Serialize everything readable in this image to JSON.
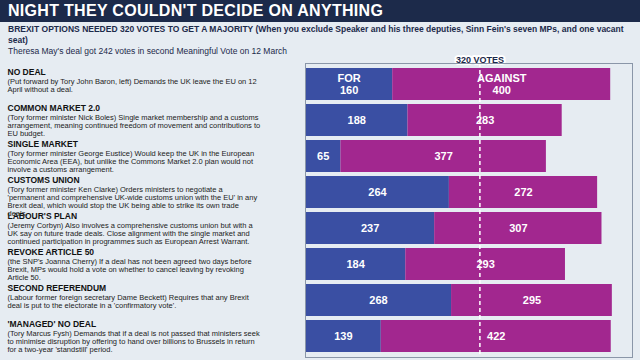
{
  "chart_data": {
    "type": "bar",
    "orientation": "horizontal",
    "stacked": true,
    "data_labels": true,
    "tick_labels": false,
    "grid": false,
    "title": "NIGHT THEY COULDN'T DECIDE ON ANYTHING",
    "subtitle": [
      "BREXIT OPTIONS NEEDED 320 VOTES TO GET A MAJORITY (When you exclude Speaker and his three deputies, Sinn Fein's seven MPs, and one vacant seat)",
      "Theresa May's deal got 242 votes in second Meaningful Vote on 12 March"
    ],
    "categories": [
      "NO DEAL",
      "COMMON MARKET 2.0",
      "SINGLE MARKET",
      "CUSTOMS UNION",
      "LABOUR'S PLAN",
      "REVOKE ARTICLE 50",
      "SECOND REFERENDUM",
      "'MANAGED' NO DEAL"
    ],
    "descriptions": [
      "(Put forward by Tory John Baron, left) Demands the UK leave the EU on 12 April without a deal.",
      "(Tory former minister Nick Boles) Single market membership and a customs arrangement, meaning continued freedom of movement and contributions to EU budget.",
      "(Tory former minister George Eustice) Would keep the UK in the European Economic Area (EEA), but unlike the Commons Market 2.0 plan would not involve a customs arrangement.",
      "(Tory former minister Ken Clarke) Orders ministers to negotiate a 'permanent and comprehensive UK-wide customs union with the EU' in any Brexit deal, which would stop the UK being able to strike its own trade deals.",
      "(Jeremy Corbyn) Also involves a comprehensive customs union but with a UK say on future trade deals. Close alignment with the single market and continued participation in programmes such as European Arrest Warrant.",
      "(the SNP's Joanna Cherry) If a deal has not been agreed two days before Brexit, MPs would hold a vote on whether to cancel leaving by revoking Article 50.",
      "(Labour former foreign secretary Dame Beckett) Requires that any Brexit deal is put to the electorate in a 'confirmatory vote'.",
      "(Tory Marcus Fysh) Demands that if a deal is not passed that ministers seek to minimise disruption by offering to hand over billions to Brussels in return for a two-year 'standstill' period."
    ],
    "series": [
      {
        "name": "FOR",
        "color": "#3a4fa3",
        "values": [
          160,
          188,
          65,
          264,
          237,
          184,
          268,
          139
        ]
      },
      {
        "name": "AGAINST",
        "color": "#a2278f",
        "values": [
          400,
          283,
          377,
          272,
          307,
          293,
          295,
          422
        ]
      }
    ],
    "xlim": [
      0,
      600
    ],
    "xticks": [],
    "threshold": {
      "value": 320,
      "label": "320 VOTES"
    }
  }
}
